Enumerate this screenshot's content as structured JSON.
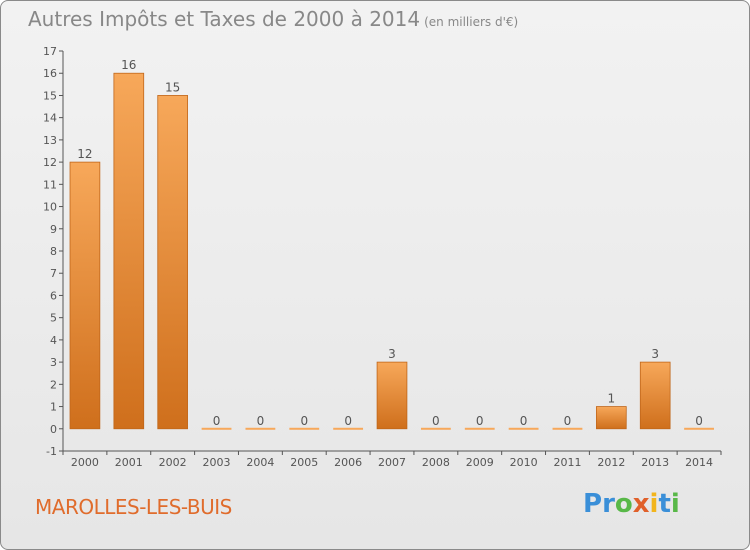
{
  "header": {
    "title": "Autres Impôts et Taxes de 2000 à 2014",
    "unit": "(en milliers d'€)"
  },
  "footer": {
    "commune": "MAROLLES-LES-BUIS",
    "logo": [
      "P",
      "r",
      "o",
      "x",
      "i",
      "t",
      "i"
    ]
  },
  "chart_data": {
    "type": "bar",
    "title": "Autres Impôts et Taxes de 2000 à 2014",
    "subtitle": "(en milliers d'€)",
    "categories": [
      "2000",
      "2001",
      "2002",
      "2003",
      "2004",
      "2005",
      "2006",
      "2007",
      "2008",
      "2009",
      "2010",
      "2011",
      "2012",
      "2013",
      "2014"
    ],
    "values": [
      12,
      16,
      15,
      0,
      0,
      0,
      0,
      3,
      0,
      0,
      0,
      0,
      1,
      3,
      0
    ],
    "data_labels": [
      "12",
      "16",
      "15",
      "0",
      "0",
      "0",
      "0",
      "3",
      "0",
      "0",
      "0",
      "0",
      "1",
      "3",
      "0"
    ],
    "ylim": [
      -1,
      17
    ],
    "yticks": [
      "-1",
      "0",
      "1",
      "2",
      "3",
      "4",
      "5",
      "6",
      "7",
      "8",
      "9",
      "10",
      "11",
      "12",
      "13",
      "14",
      "15",
      "16",
      "17"
    ],
    "grid": false,
    "bar_color_light": "#f7a85a",
    "bar_color_dark": "#cf6f1c",
    "axis_color": "#555555",
    "text_color": "#555555"
  }
}
